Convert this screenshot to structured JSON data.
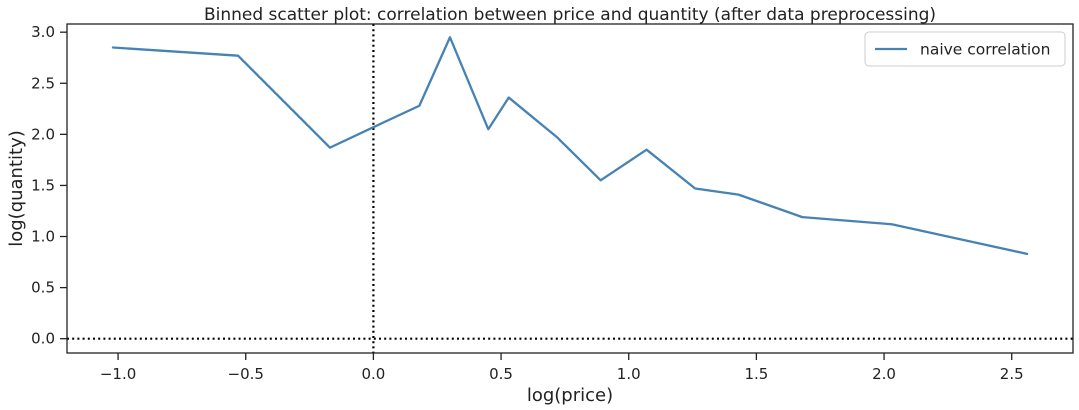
{
  "chart_data": {
    "type": "line",
    "title": "Binned scatter plot: correlation between price and quantity (after data preprocessing)",
    "xlabel": "log(price)",
    "ylabel": "log(quantity)",
    "xlim": [
      -1.2,
      2.74
    ],
    "ylim": [
      -0.14,
      3.08
    ],
    "x_ticks": [
      -1.0,
      -0.5,
      0.0,
      0.5,
      1.0,
      1.5,
      2.0,
      2.5
    ],
    "x_tick_labels": [
      "−1.0",
      "−0.5",
      "0.0",
      "0.5",
      "1.0",
      "1.5",
      "2.0",
      "2.5"
    ],
    "y_ticks": [
      0.0,
      0.5,
      1.0,
      1.5,
      2.0,
      2.5,
      3.0
    ],
    "y_tick_labels": [
      "0.0",
      "0.5",
      "1.0",
      "1.5",
      "2.0",
      "2.5",
      "3.0"
    ],
    "grid": false,
    "legend": {
      "placement": "top-right"
    },
    "reference_lines": [
      {
        "axis": "x",
        "value": 0.0,
        "style": "dotted",
        "color": "#000000"
      },
      {
        "axis": "y",
        "value": 0.0,
        "style": "dotted",
        "color": "#000000"
      }
    ],
    "series": [
      {
        "name": "naive correlation",
        "color": "#4682b4",
        "x": [
          -1.02,
          -0.53,
          -0.17,
          0.0,
          0.18,
          0.3,
          0.45,
          0.53,
          0.72,
          0.89,
          1.07,
          1.26,
          1.43,
          1.68,
          2.03,
          2.56
        ],
        "y": [
          2.85,
          2.77,
          1.87,
          2.07,
          2.28,
          2.95,
          2.05,
          2.36,
          1.97,
          1.55,
          1.85,
          1.47,
          1.41,
          1.19,
          1.12,
          0.83
        ]
      }
    ]
  }
}
